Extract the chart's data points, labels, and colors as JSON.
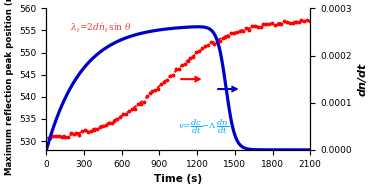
{
  "title": "",
  "xlabel": "Time (s)",
  "ylabel_left": "Maximum reflection peak position (nm)",
  "ylabel_right": "dn/dt",
  "xlim": [
    0,
    2100
  ],
  "ylim_left": [
    528,
    560
  ],
  "ylim_right": [
    0.0,
    0.0003
  ],
  "xticks": [
    0,
    300,
    600,
    900,
    1200,
    1500,
    1800,
    2100
  ],
  "yticks_left": [
    530,
    535,
    540,
    545,
    550,
    555,
    560
  ],
  "yticks_right": [
    0.0,
    0.0001,
    0.0002,
    0.0003
  ],
  "red_color": "#FF0000",
  "blue_color": "#0000CC",
  "cyan_color": "#00AAFF",
  "bg_color": "#FFFFFF"
}
